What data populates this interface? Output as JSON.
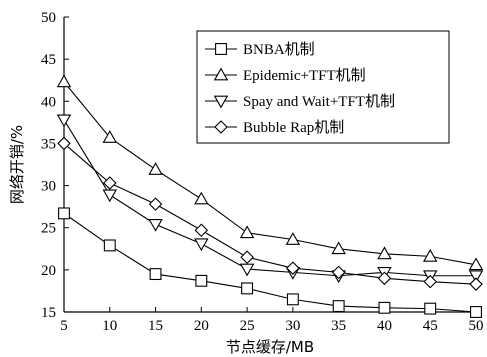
{
  "chart_data": {
    "type": "line",
    "xlabel": "节点缓存/MB",
    "ylabel": "网络开销/%",
    "x": [
      5,
      10,
      15,
      20,
      25,
      30,
      35,
      40,
      45,
      50
    ],
    "xlim": [
      5,
      50
    ],
    "ylim": [
      15,
      50
    ],
    "xticks": [
      "5",
      "10",
      "15",
      "20",
      "25",
      "30",
      "35",
      "40",
      "45",
      "50"
    ],
    "yticks": [
      "15",
      "20",
      "25",
      "30",
      "35",
      "40",
      "45",
      "50"
    ],
    "grid": false,
    "legend_position": "top-right",
    "series": [
      {
        "name": "BNBA机制",
        "marker": "square",
        "values": [
          26.7,
          22.9,
          19.5,
          18.7,
          17.8,
          16.5,
          15.7,
          15.5,
          15.4,
          15.0
        ]
      },
      {
        "name": "Epidemic+TFT机制",
        "marker": "triangle-up",
        "values": [
          42.3,
          35.7,
          31.9,
          28.4,
          24.4,
          23.6,
          22.5,
          21.9,
          21.6,
          20.6
        ]
      },
      {
        "name": "Spay and Wait+TFT机制",
        "marker": "triangle-down",
        "values": [
          37.8,
          28.9,
          25.4,
          23.1,
          20.1,
          19.7,
          19.3,
          19.7,
          19.3,
          19.3
        ]
      },
      {
        "name": "Bubble Rap机制",
        "marker": "diamond",
        "values": [
          35.0,
          30.3,
          27.8,
          24.7,
          21.5,
          20.2,
          19.7,
          19.0,
          18.6,
          18.3
        ]
      }
    ]
  }
}
